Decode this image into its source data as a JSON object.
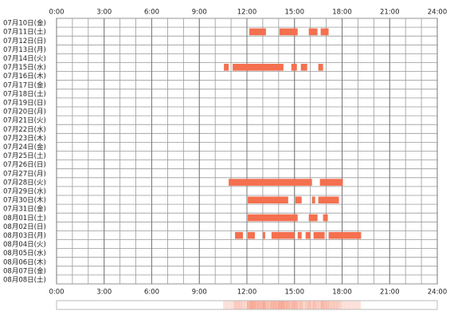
{
  "chart_data": {
    "type": "timeline",
    "categories": [
      "07月10日(金)",
      "07月11日(土)",
      "07月12日(日)",
      "07月13日(月)",
      "07月14日(火)",
      "07月15日(水)",
      "07月16日(木)",
      "07月17日(金)",
      "07月18日(土)",
      "07月19日(日)",
      "07月20日(月)",
      "07月21日(火)",
      "07月22日(水)",
      "07月23日(木)",
      "07月24日(金)",
      "07月25日(土)",
      "07月26日(日)",
      "07月27日(月)",
      "07月28日(火)",
      "07月29日(水)",
      "07月30日(木)",
      "07月31日(金)",
      "08月01日(土)",
      "08月02日(日)",
      "08月03日(月)",
      "08月04日(火)",
      "08月05日(水)",
      "08月06日(木)",
      "08月07日(金)",
      "08月08日(土)"
    ],
    "intervals": [
      [],
      [
        [
          12.15,
          13.2
        ],
        [
          14.05,
          15.2
        ],
        [
          15.9,
          16.45
        ],
        [
          16.65,
          17.15
        ]
      ],
      [],
      [],
      [],
      [
        [
          10.55,
          10.85
        ],
        [
          11.1,
          14.3
        ],
        [
          14.8,
          15.15
        ],
        [
          15.4,
          15.8
        ],
        [
          16.5,
          16.8
        ]
      ],
      [],
      [],
      [],
      [],
      [],
      [],
      [],
      [],
      [],
      [],
      [],
      [],
      [
        [
          10.85,
          16.1
        ],
        [
          16.6,
          18.05
        ]
      ],
      [],
      [
        [
          12.05,
          14.6
        ],
        [
          15.05,
          15.45
        ],
        [
          16.1,
          16.3
        ],
        [
          16.5,
          17.8
        ]
      ],
      [],
      [
        [
          12.05,
          15.2
        ],
        [
          15.9,
          16.45
        ],
        [
          16.8,
          17.1
        ]
      ],
      [],
      [
        [
          11.25,
          11.75
        ],
        [
          12.05,
          12.5
        ],
        [
          13.0,
          13.15
        ],
        [
          13.55,
          15.0
        ],
        [
          15.2,
          15.45
        ],
        [
          15.7,
          16.0
        ],
        [
          16.2,
          16.9
        ],
        [
          17.15,
          19.2
        ]
      ],
      [],
      [],
      [],
      [],
      []
    ],
    "color": "#f4704f",
    "xlim": [
      0,
      24
    ],
    "xticks": [
      {
        "value": 0,
        "label": "0:00"
      },
      {
        "value": 3,
        "label": "3:00"
      },
      {
        "value": 6,
        "label": "6:00"
      },
      {
        "value": 9,
        "label": "9:00"
      },
      {
        "value": 12,
        "label": "12:00"
      },
      {
        "value": 15,
        "label": "15:00"
      },
      {
        "value": 18,
        "label": "18:00"
      },
      {
        "value": 21,
        "label": "21:00"
      },
      {
        "value": 24,
        "label": "24:00"
      }
    ],
    "grid": true
  }
}
